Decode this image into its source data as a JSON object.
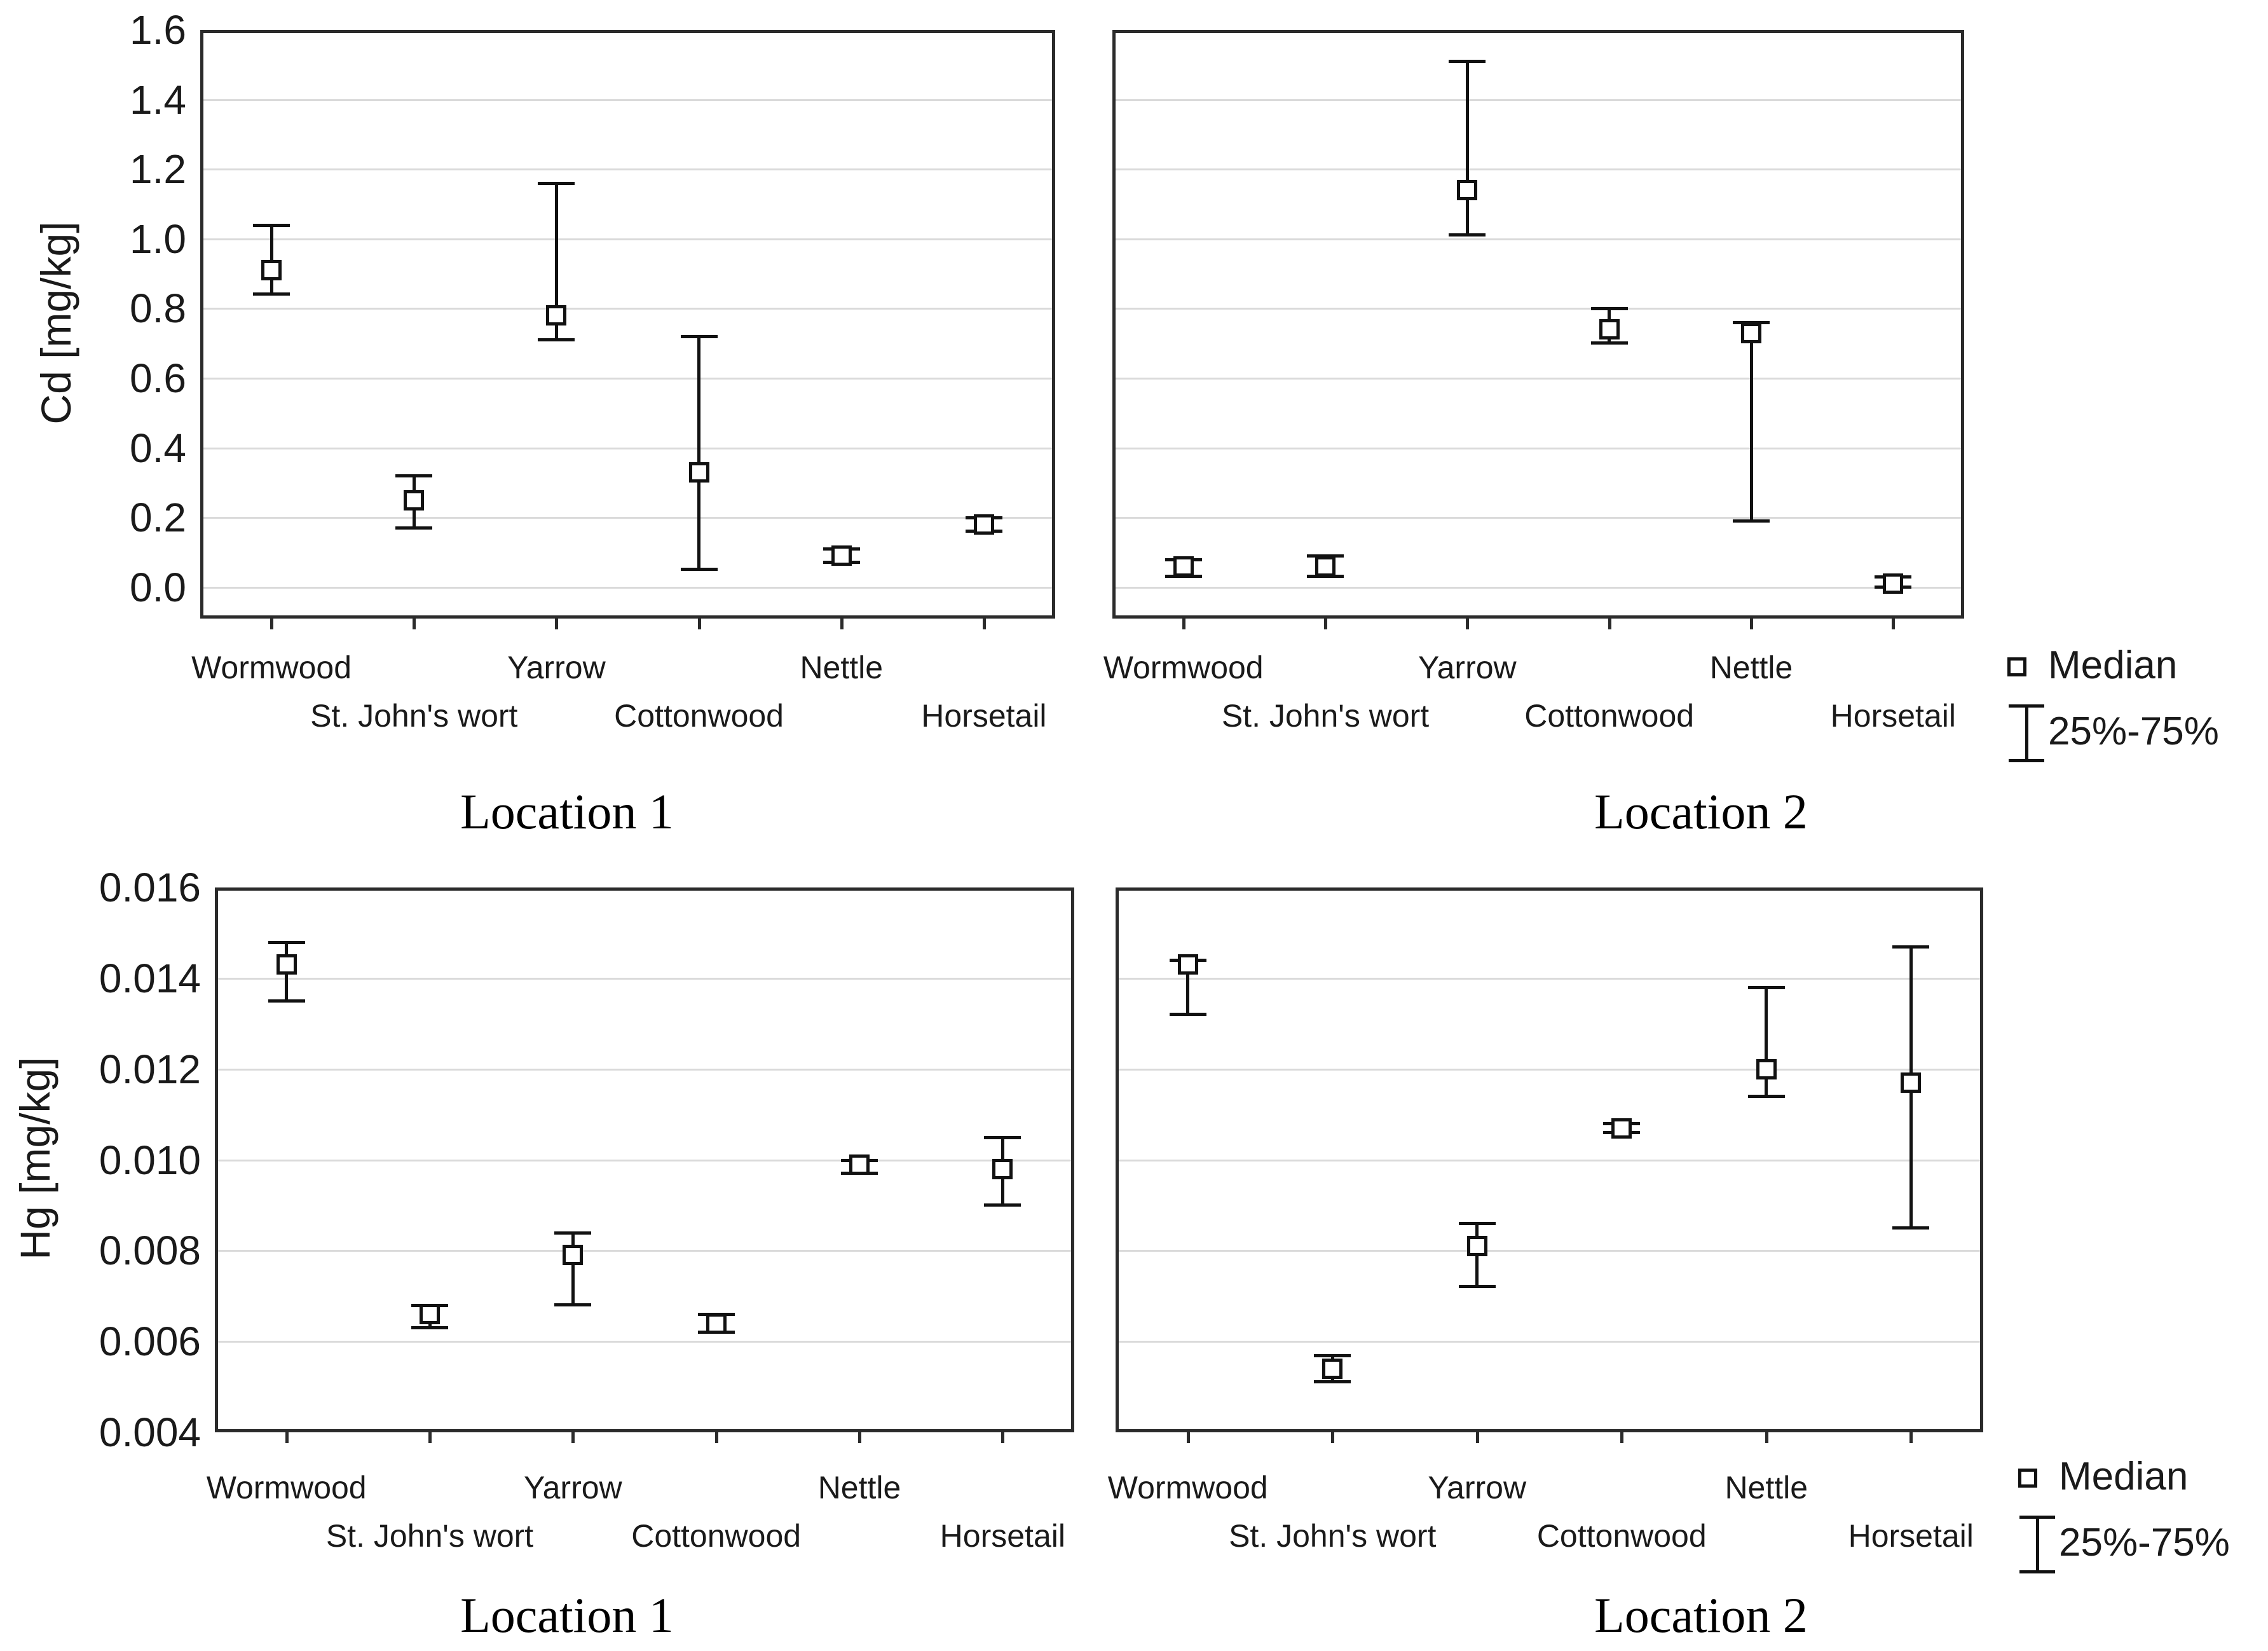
{
  "figure": {
    "background_color": "#ffffff",
    "frame_color": "#2b2b2b",
    "grid_color": "#dadada",
    "marker_color": "#111111"
  },
  "legend": {
    "median_label": "Median",
    "iqr_label": "25%-75%"
  },
  "chart_data": [
    {
      "type": "scatter",
      "title": "Location 1",
      "ylabel": "Cd [mg/kg]",
      "xlabel": "",
      "categories": [
        "Wormwood",
        "St. John's wort",
        "Yarrow",
        "Cottonwood",
        "Nettle",
        "Horsetail"
      ],
      "median": [
        0.91,
        0.25,
        0.78,
        0.33,
        0.09,
        0.18
      ],
      "q1": [
        0.84,
        0.17,
        0.71,
        0.05,
        0.07,
        0.16
      ],
      "q3": [
        1.04,
        0.32,
        1.16,
        0.72,
        0.11,
        0.2
      ],
      "ylim": [
        -0.09,
        1.6
      ],
      "yticks": [
        0.0,
        0.2,
        0.4,
        0.6,
        0.8,
        1.0,
        1.2,
        1.4,
        1.6
      ],
      "ytick_labels": [
        "0.0",
        "0.2",
        "0.4",
        "0.6",
        "0.8",
        "1.0",
        "1.2",
        "1.4",
        "1.6"
      ],
      "grid": true,
      "legend_visible": false
    },
    {
      "type": "scatter",
      "title": "Location 2",
      "ylabel": "Cd [mg/kg]",
      "xlabel": "",
      "categories": [
        "Wormwood",
        "St. John's wort",
        "Yarrow",
        "Cottonwood",
        "Nettle",
        "Horsetail"
      ],
      "median": [
        0.06,
        0.06,
        1.14,
        0.74,
        0.73,
        0.01
      ],
      "q1": [
        0.03,
        0.03,
        1.01,
        0.7,
        0.19,
        0.0
      ],
      "q3": [
        0.08,
        0.09,
        1.51,
        0.8,
        0.76,
        0.03
      ],
      "ylim": [
        -0.09,
        1.6
      ],
      "yticks": [
        0.0,
        0.2,
        0.4,
        0.6,
        0.8,
        1.0,
        1.2,
        1.4,
        1.6
      ],
      "ytick_labels": [
        "0.0",
        "0.2",
        "0.4",
        "0.6",
        "0.8",
        "1.0",
        "1.2",
        "1.4",
        "1.6"
      ],
      "grid": true,
      "legend_visible": true,
      "legend_position": "right"
    },
    {
      "type": "scatter",
      "title": "Location 1",
      "ylabel": "Hg [mg/kg]",
      "xlabel": "",
      "categories": [
        "Wormwood",
        "St. John's wort",
        "Yarrow",
        "Cottonwood",
        "Nettle",
        "Horsetail"
      ],
      "median": [
        0.0143,
        0.0066,
        0.0079,
        0.0064,
        0.0099,
        0.0098
      ],
      "q1": [
        0.0135,
        0.0063,
        0.0068,
        0.0062,
        0.0097,
        0.009
      ],
      "q3": [
        0.0148,
        0.0068,
        0.0084,
        0.0066,
        0.01,
        0.0105
      ],
      "ylim": [
        0.004,
        0.016
      ],
      "yticks": [
        0.004,
        0.006,
        0.008,
        0.01,
        0.012,
        0.014,
        0.016
      ],
      "ytick_labels": [
        "0.004",
        "0.006",
        "0.008",
        "0.010",
        "0.012",
        "0.014",
        "0.016"
      ],
      "grid": true,
      "legend_visible": false
    },
    {
      "type": "scatter",
      "title": "Location 2",
      "ylabel": "Hg [mg/kg]",
      "xlabel": "",
      "categories": [
        "Wormwood",
        "St. John's wort",
        "Yarrow",
        "Cottonwood",
        "Nettle",
        "Horsetail"
      ],
      "median": [
        0.0143,
        0.0054,
        0.0081,
        0.0107,
        0.012,
        0.0117
      ],
      "q1": [
        0.0132,
        0.0051,
        0.0072,
        0.0106,
        0.0114,
        0.0085
      ],
      "q3": [
        0.0144,
        0.0057,
        0.0086,
        0.0108,
        0.0138,
        0.0147
      ],
      "ylim": [
        0.004,
        0.016
      ],
      "yticks": [
        0.004,
        0.006,
        0.008,
        0.01,
        0.012,
        0.014,
        0.016
      ],
      "ytick_labels": [
        "0.004",
        "0.006",
        "0.008",
        "0.010",
        "0.012",
        "0.014",
        "0.016"
      ],
      "grid": true,
      "legend_visible": true,
      "legend_position": "right"
    }
  ]
}
